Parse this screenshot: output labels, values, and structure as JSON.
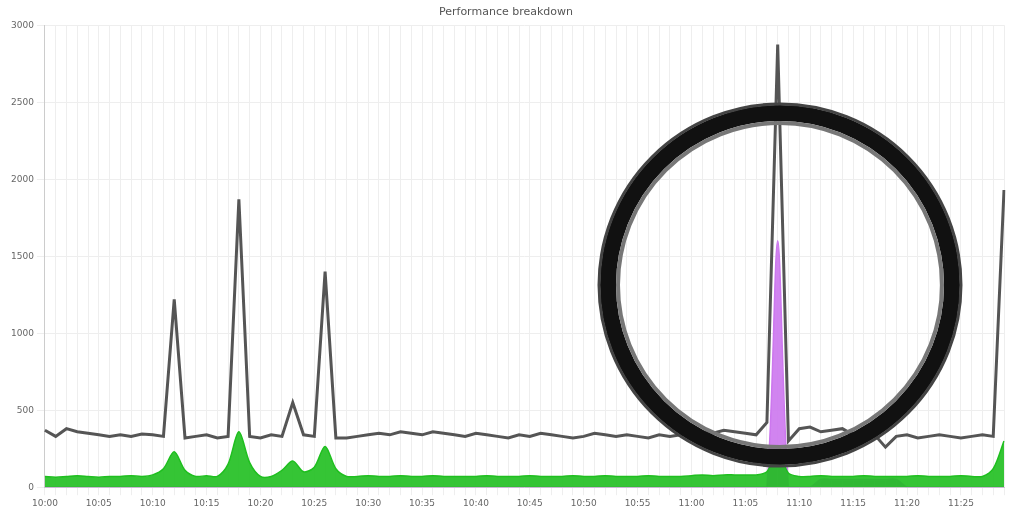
{
  "chart_data": {
    "type": "line",
    "title": "Performance breakdown",
    "categories": [
      "10:00",
      null,
      null,
      null,
      null,
      "10:05",
      null,
      null,
      null,
      null,
      "10:10",
      null,
      null,
      null,
      null,
      "10:15",
      null,
      null,
      null,
      null,
      "10:20",
      null,
      null,
      null,
      null,
      "10:25",
      null,
      null,
      null,
      null,
      "10:30",
      null,
      null,
      null,
      null,
      "10:35",
      null,
      null,
      null,
      null,
      "10:40",
      null,
      null,
      null,
      null,
      "10:45",
      null,
      null,
      null,
      null,
      "10:50",
      null,
      null,
      null,
      null,
      "10:55",
      null,
      null,
      null,
      null,
      "11:00",
      null,
      null,
      null,
      null,
      "11:05",
      null,
      null,
      null,
      null,
      "11:10",
      null,
      null,
      null,
      null,
      "11:15",
      null,
      null,
      null,
      null,
      "11:20",
      null,
      null,
      null,
      null,
      "11:25",
      null,
      null,
      null,
      null
    ],
    "series": [
      {
        "type": "line",
        "color": "#555555",
        "marker": "none",
        "values": [
          370,
          330,
          380,
          360,
          350,
          340,
          330,
          340,
          330,
          345,
          340,
          330,
          1220,
          320,
          330,
          340,
          320,
          330,
          1870,
          330,
          320,
          340,
          330,
          550,
          340,
          330,
          1400,
          320,
          320,
          330,
          340,
          350,
          340,
          360,
          350,
          340,
          360,
          350,
          340,
          330,
          350,
          340,
          330,
          320,
          340,
          330,
          350,
          340,
          330,
          320,
          330,
          350,
          340,
          330,
          340,
          330,
          320,
          340,
          330,
          340,
          350,
          360,
          350,
          370,
          360,
          350,
          340,
          420,
          2875,
          300,
          380,
          390,
          360,
          370,
          380,
          340,
          320,
          340,
          260,
          330,
          340,
          320,
          330,
          340,
          330,
          320,
          330,
          340,
          330,
          1930
        ]
      },
      {
        "type": "area",
        "color": "#1fbf1f",
        "marker": "none",
        "values": [
          70,
          65,
          70,
          75,
          70,
          65,
          70,
          70,
          75,
          70,
          80,
          120,
          230,
          110,
          70,
          75,
          70,
          150,
          360,
          160,
          70,
          70,
          110,
          170,
          100,
          130,
          265,
          120,
          70,
          70,
          75,
          70,
          70,
          75,
          70,
          70,
          75,
          70,
          70,
          70,
          70,
          75,
          70,
          70,
          70,
          75,
          70,
          70,
          70,
          75,
          70,
          70,
          75,
          70,
          70,
          70,
          75,
          70,
          70,
          70,
          75,
          80,
          75,
          80,
          80,
          80,
          80,
          100,
          230,
          90,
          70,
          70,
          75,
          70,
          70,
          70,
          75,
          70,
          70,
          70,
          70,
          75,
          70,
          70,
          70,
          75,
          70,
          70,
          120,
          300
        ]
      },
      {
        "type": "area",
        "color": "#cc77ee",
        "marker": "none",
        "values": [
          0,
          0,
          0,
          0,
          0,
          0,
          0,
          0,
          0,
          0,
          0,
          0,
          0,
          0,
          0,
          0,
          0,
          0,
          0,
          0,
          0,
          0,
          0,
          0,
          0,
          0,
          0,
          0,
          0,
          0,
          0,
          0,
          0,
          0,
          0,
          0,
          0,
          0,
          0,
          0,
          0,
          0,
          0,
          0,
          0,
          0,
          0,
          0,
          0,
          0,
          0,
          0,
          0,
          0,
          0,
          0,
          0,
          0,
          0,
          0,
          0,
          0,
          0,
          0,
          0,
          0,
          0,
          0,
          1600,
          0,
          0,
          0,
          50,
          50,
          50,
          50,
          50,
          50,
          50,
          50,
          0,
          0,
          0,
          0,
          0,
          0,
          0,
          0,
          0,
          0
        ]
      }
    ],
    "ylim": [
      0,
      3000
    ],
    "yticks": [
      0,
      500,
      1000,
      1500,
      2000,
      2500,
      3000
    ],
    "grid": true
  }
}
